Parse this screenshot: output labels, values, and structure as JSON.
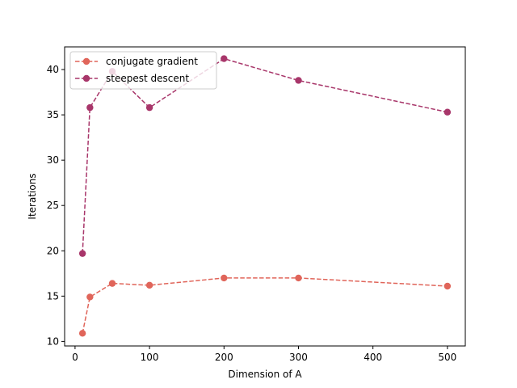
{
  "chart_data": {
    "type": "line",
    "title": "",
    "xlabel": "Dimension of A",
    "ylabel": "Iterations",
    "xlim": [
      -14,
      524
    ],
    "ylim": [
      9.5,
      42.5
    ],
    "xticks": [
      0,
      100,
      200,
      300,
      400,
      500
    ],
    "yticks": [
      10,
      15,
      20,
      25,
      30,
      35,
      40
    ],
    "grid": false,
    "legend_position": "top-left",
    "line_style": "dashed",
    "marker": "circle",
    "x": [
      10,
      20,
      50,
      100,
      200,
      300,
      500
    ],
    "series": [
      {
        "name": "conjugate gradient",
        "color": "#e0655a",
        "values": [
          10.9,
          14.9,
          16.4,
          16.2,
          17.0,
          17.0,
          16.1
        ]
      },
      {
        "name": "steepest descent",
        "color": "#a8366a",
        "values": [
          19.7,
          35.8,
          39.8,
          35.8,
          41.2,
          38.8,
          35.3
        ]
      }
    ]
  }
}
